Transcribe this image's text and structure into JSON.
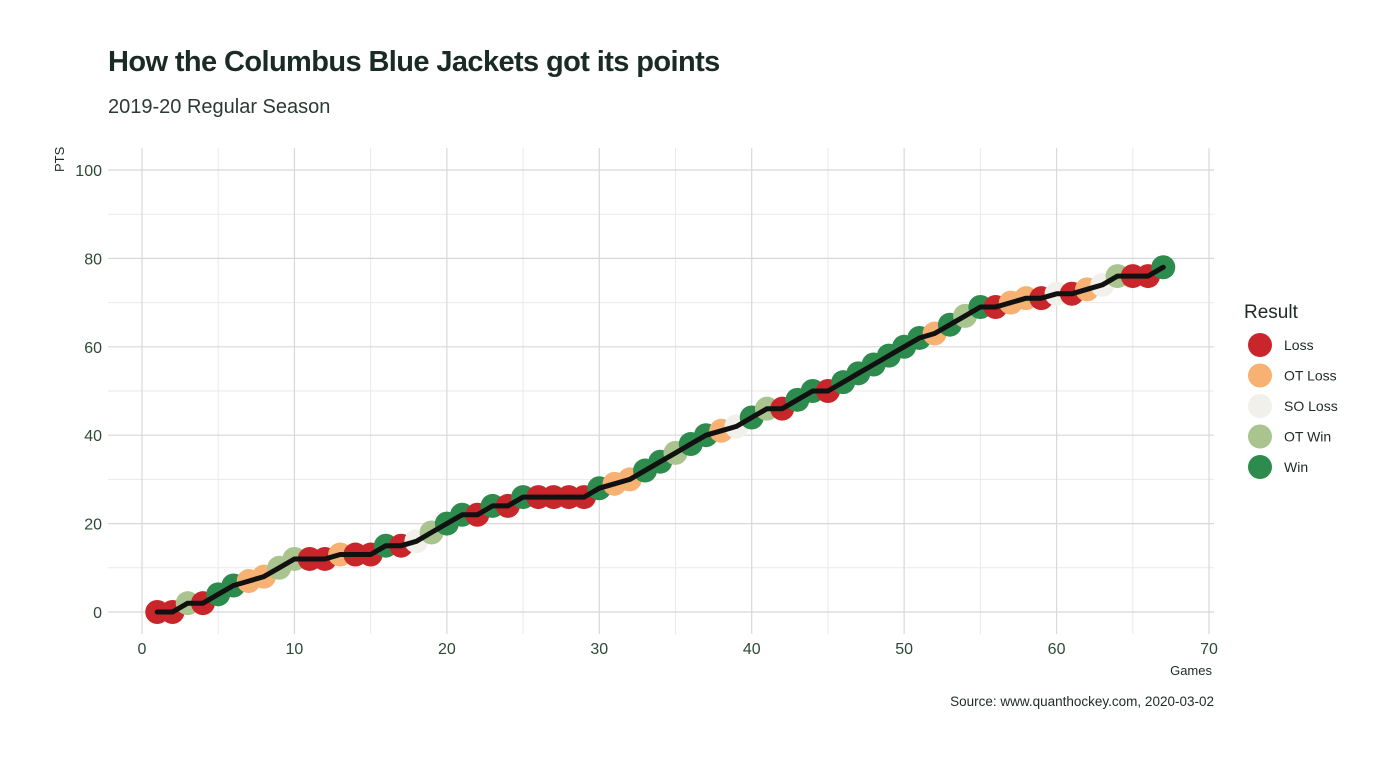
{
  "title": "How the Columbus Blue Jackets got its points",
  "subtitle": "2019-20 Regular Season",
  "caption": "Source: www.quanthockey.com, 2020-03-02",
  "chart_data": {
    "type": "line",
    "xlabel": "Games",
    "ylabel": "PTS",
    "xlim": [
      0,
      70
    ],
    "ylim": [
      0,
      100
    ],
    "x_ticks": [
      0,
      10,
      20,
      30,
      40,
      50,
      60,
      70
    ],
    "y_ticks": [
      0,
      20,
      40,
      60,
      80,
      100
    ],
    "grid": true,
    "legend": {
      "title": "Result",
      "position": "right",
      "entries": [
        "Loss",
        "OT Loss",
        "SO Loss",
        "OT Win",
        "Win"
      ]
    },
    "colors": {
      "Loss": "#c8262a",
      "OT Loss": "#f6b173",
      "SO Loss": "#f1f0ea",
      "OT Win": "#a9c48e",
      "Win": "#2e8b4e",
      "line": "#111111"
    },
    "games": [
      1,
      2,
      3,
      4,
      5,
      6,
      7,
      8,
      9,
      10,
      11,
      12,
      13,
      14,
      15,
      16,
      17,
      18,
      19,
      20,
      21,
      22,
      23,
      24,
      25,
      26,
      27,
      28,
      29,
      30,
      31,
      32,
      33,
      34,
      35,
      36,
      37,
      38,
      39,
      40,
      41,
      42,
      43,
      44,
      45,
      46,
      47,
      48,
      49,
      50,
      51,
      52,
      53,
      54,
      55,
      56,
      57,
      58,
      59,
      60,
      61,
      62,
      63,
      64,
      65,
      66,
      67
    ],
    "points": [
      0,
      0,
      2,
      2,
      4,
      6,
      7,
      8,
      10,
      12,
      12,
      12,
      13,
      13,
      13,
      15,
      15,
      16,
      18,
      20,
      22,
      22,
      24,
      24,
      26,
      26,
      26,
      26,
      26,
      28,
      29,
      30,
      32,
      34,
      36,
      38,
      40,
      41,
      42,
      44,
      46,
      46,
      48,
      50,
      50,
      52,
      54,
      56,
      58,
      60,
      62,
      63,
      65,
      67,
      69,
      69,
      70,
      71,
      71,
      72,
      72,
      73,
      74,
      76,
      76,
      76,
      78
    ],
    "results": [
      "Loss",
      "Loss",
      "OT Win",
      "Loss",
      "Win",
      "Win",
      "OT Loss",
      "OT Loss",
      "OT Win",
      "OT Win",
      "Loss",
      "Loss",
      "OT Loss",
      "Loss",
      "Loss",
      "Win",
      "Loss",
      "SO Loss",
      "OT Win",
      "Win",
      "Win",
      "Loss",
      "Win",
      "Loss",
      "Win",
      "Loss",
      "Loss",
      "Loss",
      "Loss",
      "Win",
      "OT Loss",
      "OT Loss",
      "Win",
      "Win",
      "OT Win",
      "Win",
      "Win",
      "OT Loss",
      "SO Loss",
      "Win",
      "OT Win",
      "Loss",
      "Win",
      "Win",
      "Loss",
      "Win",
      "Win",
      "Win",
      "Win",
      "Win",
      "Win",
      "OT Loss",
      "Win",
      "OT Win",
      "Win",
      "Loss",
      "OT Loss",
      "OT Loss",
      "Loss",
      "SO Loss",
      "Loss",
      "OT Loss",
      "SO Loss",
      "OT Win",
      "Loss",
      "Loss",
      "Win"
    ]
  }
}
